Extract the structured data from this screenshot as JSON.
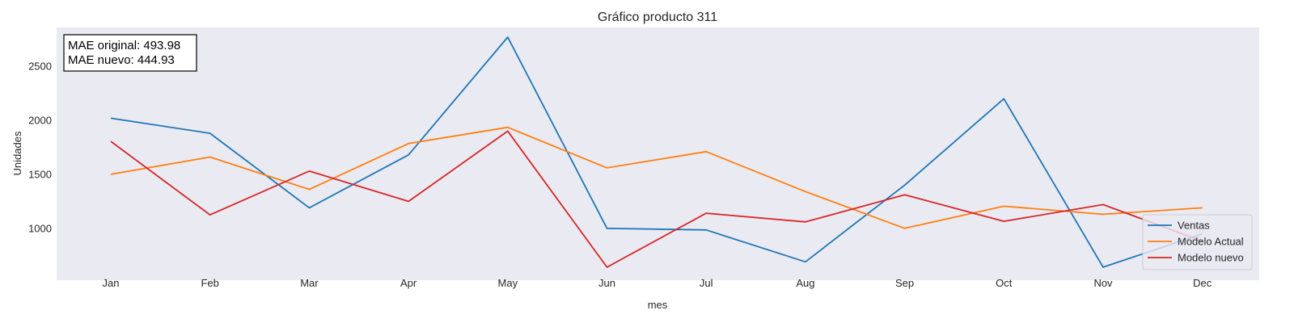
{
  "chart_data": {
    "type": "line",
    "title": "Gráfico producto 311",
    "xlabel": "mes",
    "ylabel": "Unidades",
    "categories": [
      "Jan",
      "Feb",
      "Mar",
      "Apr",
      "May",
      "Jun",
      "Jul",
      "Aug",
      "Sep",
      "Oct",
      "Nov",
      "Dec"
    ],
    "yticks": [
      1000,
      1500,
      2000,
      2500
    ],
    "ylim": [
      520,
      2860
    ],
    "grid": false,
    "legend_position": "bottom-right",
    "background_color": "#eaeaf2",
    "series": [
      {
        "name": "Ventas",
        "color": "#1f77b4",
        "values": [
          2020,
          1880,
          1190,
          1680,
          2770,
          1000,
          985,
          690,
          1400,
          2200,
          640,
          950
        ]
      },
      {
        "name": "Modelo Actual",
        "color": "#ff7f0e",
        "values": [
          1500,
          1660,
          1360,
          1785,
          1935,
          1560,
          1710,
          1340,
          1000,
          1205,
          1130,
          1190
        ]
      },
      {
        "name": "Modelo nuevo",
        "color": "#d62728",
        "values": [
          1805,
          1125,
          1530,
          1250,
          1900,
          640,
          1140,
          1060,
          1310,
          1065,
          1220,
          880
        ]
      }
    ],
    "annotation": {
      "line1": "MAE original: 493.98",
      "line2": "MAE nuevo: 444.93"
    }
  }
}
